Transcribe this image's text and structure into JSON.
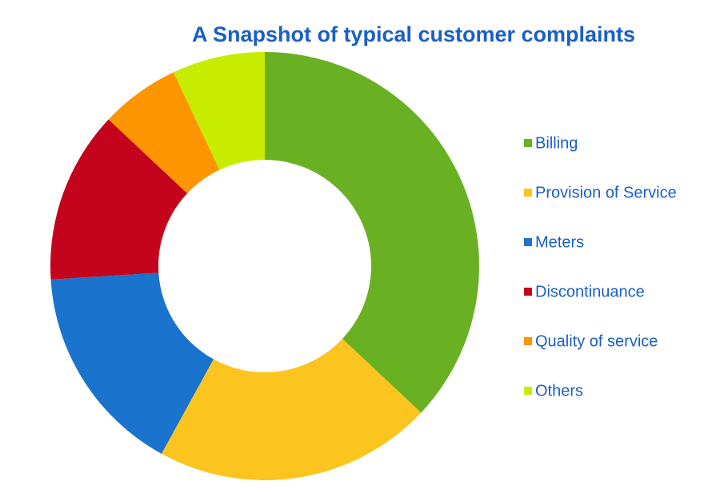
{
  "chart_data": {
    "type": "donut",
    "title": "A Snapshot of typical customer complaints",
    "categories": [
      "Billing",
      "Provision of Service",
      "Meters",
      "Discontinuance",
      "Quality of service",
      "Others"
    ],
    "values": [
      37,
      21,
      16,
      13,
      6,
      7
    ],
    "colors": [
      "#6ab023",
      "#fcc41e",
      "#1a73cc",
      "#c4041c",
      "#fc9500",
      "#c8ec00"
    ],
    "legend": "right"
  }
}
